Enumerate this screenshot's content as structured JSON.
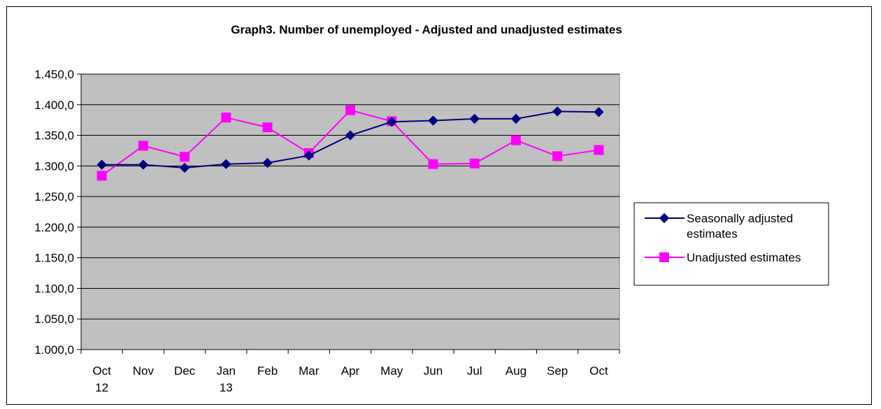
{
  "chart_data": {
    "type": "line",
    "title": "Graph3. Number of unemployed - Adjusted and unadjusted estimates",
    "categories": [
      [
        "Oct",
        "12"
      ],
      [
        "Nov"
      ],
      [
        "Dec"
      ],
      [
        "Jan",
        "13"
      ],
      [
        "Feb"
      ],
      [
        "Mar"
      ],
      [
        "Apr"
      ],
      [
        "May"
      ],
      [
        "Jun"
      ],
      [
        "Jul"
      ],
      [
        "Aug"
      ],
      [
        "Sep"
      ],
      [
        "Oct"
      ]
    ],
    "y_ticks": [
      "1.000,0",
      "1.050,0",
      "1.100,0",
      "1.150,0",
      "1.200,0",
      "1.250,0",
      "1.300,0",
      "1.350,0",
      "1.400,0",
      "1.450,0"
    ],
    "ylim": [
      1000,
      1450
    ],
    "grid": "horizontal",
    "legend_position": "right",
    "plot_background": "#c0c0c0",
    "series": [
      {
        "name": "Seasonally adjusted estimates",
        "name_lines": [
          "Seasonally adjusted",
          "estimates"
        ],
        "color": "#000080",
        "marker": "diamond",
        "values": [
          1302,
          1302,
          1297,
          1303,
          1305,
          1317,
          1350,
          1372,
          1374,
          1377,
          1377,
          1389,
          1388
        ]
      },
      {
        "name": "Unadjusted estimates",
        "name_lines": [
          "Unadjusted estimates"
        ],
        "color": "#ff00ff",
        "marker": "square",
        "values": [
          1284,
          1333,
          1315,
          1379,
          1363,
          1321,
          1391,
          1373,
          1303,
          1304,
          1342,
          1316,
          1326
        ]
      }
    ]
  }
}
